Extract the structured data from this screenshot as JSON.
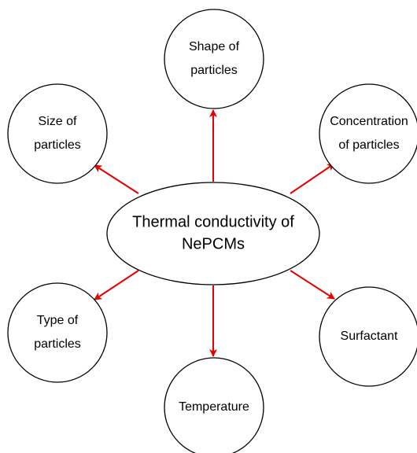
{
  "center": {
    "lines": [
      "Thermal conductivity of",
      "NePCMs"
    ]
  },
  "nodes": [
    {
      "lines": [
        "Shape of",
        "particles"
      ]
    },
    {
      "lines": [
        "Size of",
        "particles"
      ]
    },
    {
      "lines": [
        "Concentration",
        "of particles"
      ]
    },
    {
      "lines": [
        "Type of",
        "particles"
      ]
    },
    {
      "lines": [
        "Surfactant"
      ]
    },
    {
      "lines": [
        "Temperature"
      ]
    }
  ]
}
